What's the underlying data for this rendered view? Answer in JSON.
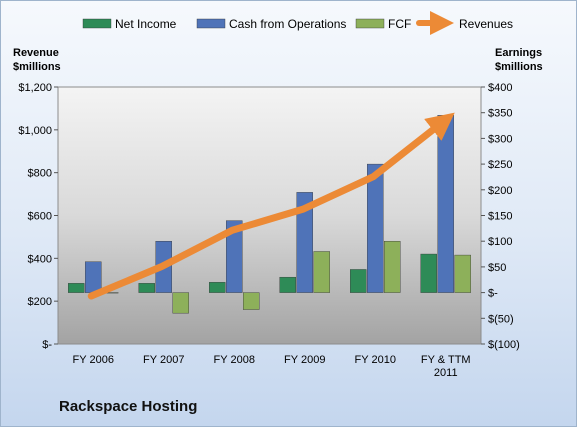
{
  "chart_data": {
    "type": "bar",
    "title": "Rackspace Hosting",
    "categories": [
      "FY 2006",
      "FY 2007",
      "FY 2008",
      "FY 2009",
      "FY 2010",
      [
        "FY & TTM",
        "2011"
      ]
    ],
    "left_axis": {
      "title": [
        "Revenue",
        "$millions"
      ],
      "ticks": [
        "$-",
        "$200",
        "$400",
        "$600",
        "$800",
        "$1,000",
        "$1,200"
      ],
      "range": [
        0,
        1200
      ]
    },
    "right_axis": {
      "title": [
        "Earnings",
        "$millions"
      ],
      "ticks": [
        "$(100)",
        "$(50)",
        "$-",
        "$50",
        "$100",
        "$150",
        "$200",
        "$250",
        "$300",
        "$350",
        "$400"
      ],
      "range": [
        -100,
        400
      ]
    },
    "series": [
      {
        "name": "Net Income",
        "axis": "right",
        "color": "#2e8b57",
        "values": [
          18,
          18,
          20,
          30,
          45,
          75
        ]
      },
      {
        "name": "Cash from Operations",
        "axis": "right",
        "color": "#4f73b8",
        "values": [
          60,
          100,
          140,
          195,
          250,
          345
        ]
      },
      {
        "name": "FCF",
        "axis": "right",
        "color": "#8db05a",
        "values": [
          0,
          -40,
          -33,
          80,
          100,
          73
        ]
      },
      {
        "name": "Revenues",
        "axis": "left",
        "type": "line",
        "color": "#ec8a36",
        "values": [
          224,
          362,
          531,
          629,
          781,
          1040
        ]
      }
    ],
    "legend_position": "top",
    "grid": false
  }
}
